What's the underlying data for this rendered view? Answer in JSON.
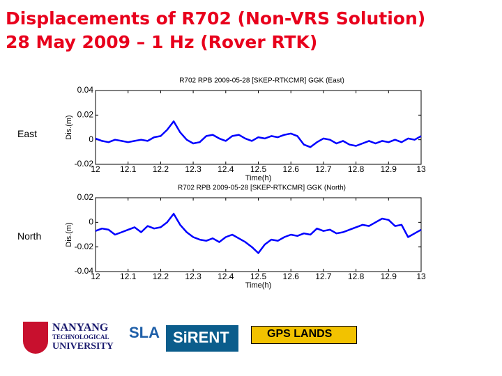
{
  "slide": {
    "title_line_1": "Displacements of R702 (Non-VRS Solution)",
    "title_line_2": "28 May 2009 – 1 Hz (Rover RTK)",
    "labels": [
      "East",
      "North"
    ]
  },
  "logos": {
    "ntu_1": "NANYANG",
    "ntu_2": "TECHNOLOGICAL",
    "ntu_3": "UNIVERSITY",
    "sla": "SLA",
    "sirent": "SiRENT",
    "gps_lands": "GPS LANDS"
  },
  "chart_data": [
    {
      "type": "line",
      "title": "R702 RPB 2009-05-28 [SKEP-RTKCMR] GGK (East)",
      "x_label": "Time(h)",
      "y_label": "Dis.(m)",
      "color": "#0000ff",
      "x": [
        12,
        12.02,
        12.04,
        12.06,
        12.08,
        12.1,
        12.12,
        12.14,
        12.16,
        12.18,
        12.2,
        12.22,
        12.24,
        12.26,
        12.28,
        12.3,
        12.32,
        12.34,
        12.36,
        12.38,
        12.4,
        12.42,
        12.44,
        12.46,
        12.48,
        12.5,
        12.52,
        12.54,
        12.56,
        12.58,
        12.6,
        12.62,
        12.64,
        12.66,
        12.68,
        12.7,
        12.72,
        12.74,
        12.76,
        12.78,
        12.8,
        12.82,
        12.84,
        12.86,
        12.88,
        12.9,
        12.92,
        12.94,
        12.96,
        12.98,
        13
      ],
      "values": [
        0.001,
        -0.001,
        -0.002,
        0,
        -0.001,
        -0.002,
        -0.001,
        0,
        -0.001,
        0.002,
        0.003,
        0.008,
        0.015,
        0.006,
        0,
        -0.003,
        -0.002,
        0.003,
        0.004,
        0.001,
        -0.001,
        0.003,
        0.004,
        0.001,
        -0.001,
        0.002,
        0.001,
        0.003,
        0.002,
        0.004,
        0.005,
        0.003,
        -0.004,
        -0.006,
        -0.002,
        0.001,
        0,
        -0.003,
        -0.001,
        -0.004,
        -0.005,
        -0.003,
        -0.001,
        -0.003,
        -0.001,
        -0.002,
        0,
        -0.002,
        0.001,
        0,
        0.003
      ],
      "xlim": [
        12,
        13
      ],
      "xticks": [
        12,
        12.1,
        12.2,
        12.3,
        12.4,
        12.5,
        12.6,
        12.7,
        12.8,
        12.9,
        13
      ],
      "ylim": [
        -0.02,
        0.04
      ],
      "yticks": [
        -0.02,
        0,
        0.02,
        0.04
      ],
      "grid": false
    },
    {
      "type": "line",
      "title": "R702 RPB 2009-05-28 [SKEP-RTKCMR] GGK (North)",
      "x_label": "Time(h)",
      "y_label": "Dis.(m)",
      "color": "#0000ff",
      "x": [
        12,
        12.02,
        12.04,
        12.06,
        12.08,
        12.1,
        12.12,
        12.14,
        12.16,
        12.18,
        12.2,
        12.22,
        12.24,
        12.26,
        12.28,
        12.3,
        12.32,
        12.34,
        12.36,
        12.38,
        12.4,
        12.42,
        12.44,
        12.46,
        12.48,
        12.5,
        12.52,
        12.54,
        12.56,
        12.58,
        12.6,
        12.62,
        12.64,
        12.66,
        12.68,
        12.7,
        12.72,
        12.74,
        12.76,
        12.78,
        12.8,
        12.82,
        12.84,
        12.86,
        12.88,
        12.9,
        12.92,
        12.94,
        12.96,
        12.98,
        13
      ],
      "values": [
        -0.007,
        -0.005,
        -0.006,
        -0.01,
        -0.008,
        -0.006,
        -0.004,
        -0.008,
        -0.003,
        -0.005,
        -0.004,
        0,
        0.007,
        -0.002,
        -0.008,
        -0.012,
        -0.014,
        -0.015,
        -0.013,
        -0.016,
        -0.012,
        -0.01,
        -0.013,
        -0.016,
        -0.02,
        -0.025,
        -0.018,
        -0.014,
        -0.015,
        -0.012,
        -0.01,
        -0.011,
        -0.009,
        -0.01,
        -0.005,
        -0.007,
        -0.006,
        -0.009,
        -0.008,
        -0.006,
        -0.004,
        -0.002,
        -0.003,
        0,
        0.003,
        0.002,
        -0.003,
        -0.002,
        -0.012,
        -0.009,
        -0.006
      ],
      "xlim": [
        12,
        13
      ],
      "xticks": [
        12,
        12.1,
        12.2,
        12.3,
        12.4,
        12.5,
        12.6,
        12.7,
        12.8,
        12.9,
        13
      ],
      "ylim": [
        -0.04,
        0.02
      ],
      "yticks": [
        -0.04,
        -0.02,
        0,
        0.02
      ],
      "grid": false
    }
  ]
}
